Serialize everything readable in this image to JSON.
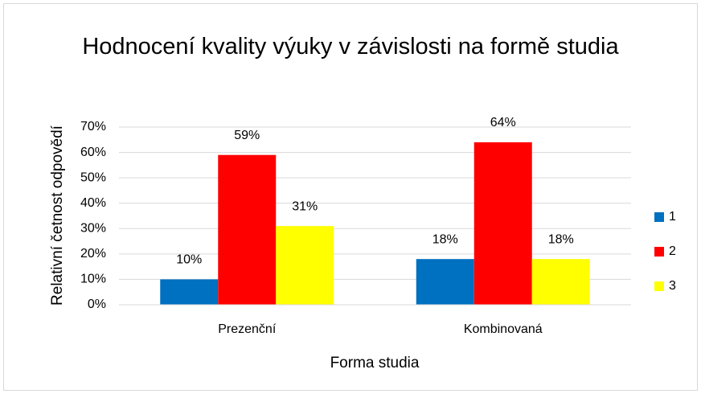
{
  "chart_data": {
    "type": "bar",
    "title": "Hodnocení kvality výuky v závislosti na formě studia",
    "x_label": "Forma studia",
    "y_label": "Relativní četnost odpovědí",
    "categories": [
      "Prezenční",
      "Kombinovaná"
    ],
    "series": [
      {
        "name": "1",
        "color": "#0070c0",
        "values": [
          10,
          18
        ],
        "value_labels": [
          "10%",
          "18%"
        ]
      },
      {
        "name": "2",
        "color": "#ff0000",
        "values": [
          59,
          64
        ],
        "value_labels": [
          "59%",
          "64%"
        ]
      },
      {
        "name": "3",
        "color": "#ffff00",
        "values": [
          31,
          18
        ],
        "value_labels": [
          "31%",
          "18%"
        ]
      }
    ],
    "ylim": [
      0,
      70
    ],
    "yticks": [
      {
        "value": 0,
        "label": "0%"
      },
      {
        "value": 10,
        "label": "10%"
      },
      {
        "value": 20,
        "label": "20%"
      },
      {
        "value": 30,
        "label": "30%"
      },
      {
        "value": 40,
        "label": "40%"
      },
      {
        "value": 50,
        "label": "50%"
      },
      {
        "value": 60,
        "label": "60%"
      },
      {
        "value": 70,
        "label": "70%"
      }
    ],
    "grid": true,
    "legend": "right"
  }
}
